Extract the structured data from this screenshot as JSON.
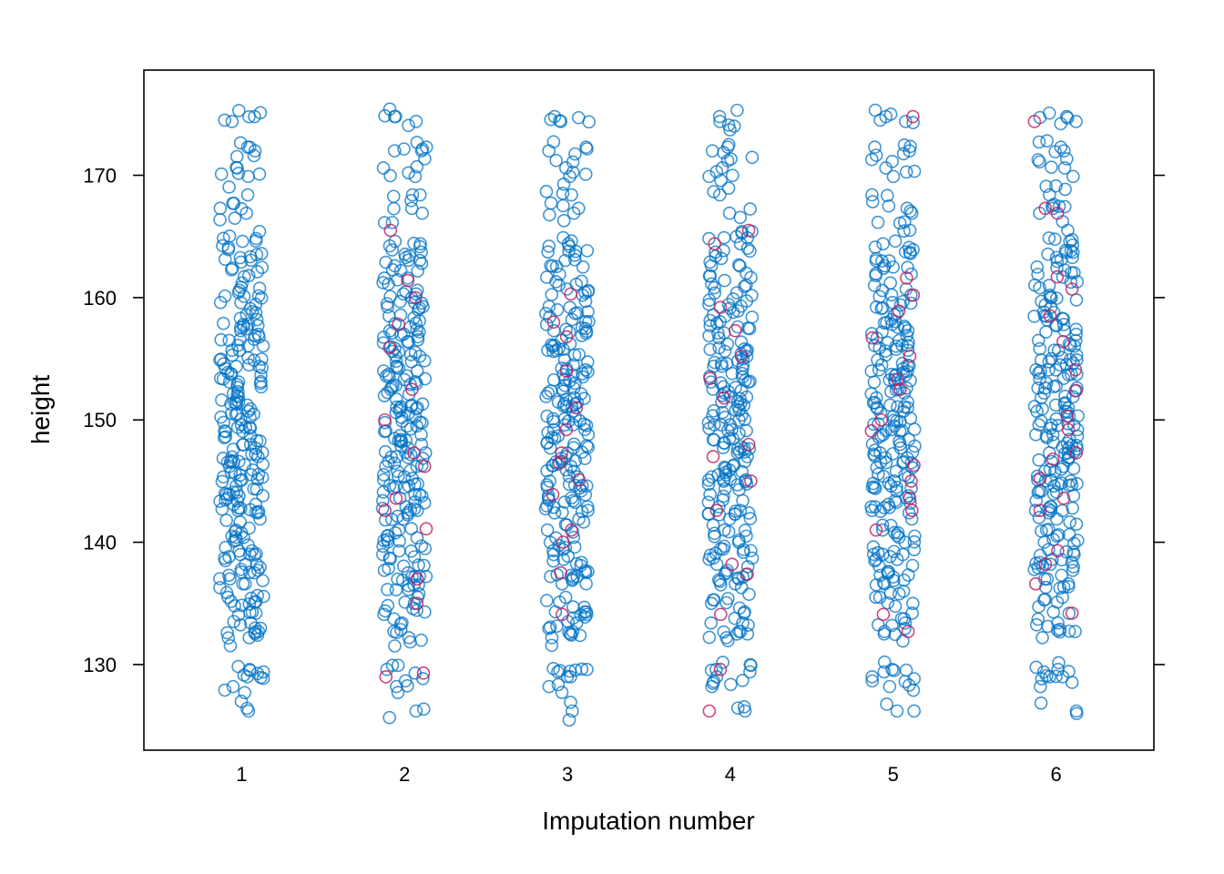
{
  "chart_data": {
    "type": "scatter",
    "title": "",
    "xlabel": "Imputation number",
    "ylabel": "height",
    "categories": [
      "1",
      "2",
      "3",
      "4",
      "5",
      "6"
    ],
    "x_ticks": [
      "1",
      "2",
      "3",
      "4",
      "5",
      "6"
    ],
    "y_ticks": [
      "130",
      "140",
      "150",
      "160",
      "170"
    ],
    "ylim": [
      123,
      178.6
    ],
    "x_range": [
      0.4,
      6.6
    ],
    "grid": false,
    "legend": "none",
    "marker": "open-circle",
    "jitter": true,
    "colors": {
      "observed": "#0072C6",
      "imputed": "#C2185B"
    },
    "series": [
      {
        "role": "observed",
        "note_points_per_category": 280,
        "values_by_category": [
          [
            126.2,
            128.2,
            129.0,
            129.4,
            129.6,
            132.2,
            132.6,
            132.7,
            133.4,
            134.2,
            134.3,
            134.8,
            135.1,
            135.5,
            136.6,
            137.0,
            137.3,
            137.5,
            137.7,
            138.2,
            138.7,
            139.0,
            139.3,
            140.4,
            140.5,
            141.0,
            141.9,
            142.4,
            142.6,
            142.8,
            143.1,
            143.6,
            143.9,
            144.1,
            144.6,
            145.1,
            145.3,
            145.5,
            145.9,
            146.2,
            146.6,
            147.0,
            147.2,
            147.6,
            148.0,
            148.3,
            148.7,
            149.1,
            149.4,
            149.8,
            150.2,
            150.5,
            150.9,
            151.3,
            151.6,
            152.0,
            152.3,
            152.7,
            153.1,
            153.4,
            153.8,
            154.2,
            154.5,
            154.9,
            155.3,
            155.7,
            156.1,
            156.5,
            156.9,
            157.3,
            157.8,
            158.2,
            158.6,
            159.1,
            159.6,
            160.1,
            160.6,
            161.2,
            161.8,
            162.4,
            162.9,
            163.6,
            164.1,
            164.6,
            165.4,
            166.9,
            167.3,
            168.4,
            169.9,
            170.6,
            172.0,
            172.3,
            174.4,
            174.8
          ],
          [
            126.2,
            128.2,
            129.3,
            129.6,
            132.2,
            132.7,
            133.4,
            134.1,
            134.3,
            135.1,
            135.5,
            136.5,
            136.9,
            137.2,
            137.5,
            137.7,
            138.1,
            138.7,
            139.0,
            139.3,
            140.1,
            140.5,
            141.0,
            141.9,
            142.4,
            142.6,
            142.9,
            143.4,
            143.9,
            144.1,
            144.6,
            145.1,
            145.4,
            145.8,
            146.2,
            146.6,
            147.0,
            147.3,
            147.7,
            148.0,
            148.4,
            148.8,
            149.1,
            149.5,
            149.9,
            150.2,
            150.6,
            151.0,
            151.3,
            151.7,
            152.1,
            152.5,
            152.9,
            153.3,
            153.6,
            154.0,
            154.4,
            154.8,
            155.2,
            155.6,
            156.0,
            156.4,
            156.8,
            157.2,
            157.6,
            158.1,
            158.5,
            159.0,
            159.5,
            160.0,
            160.6,
            161.1,
            161.6,
            162.2,
            162.8,
            163.4,
            163.9,
            164.4,
            164.6,
            166.9,
            167.3,
            168.4,
            169.9,
            170.6,
            172.0,
            172.3,
            174.4,
            174.8
          ],
          [
            126.2,
            128.2,
            129.0,
            129.4,
            129.6,
            132.2,
            132.5,
            132.7,
            133.4,
            134.1,
            134.3,
            135.1,
            135.5,
            136.6,
            137.0,
            137.3,
            137.6,
            138.1,
            138.6,
            139.0,
            139.4,
            140.4,
            141.0,
            141.9,
            142.4,
            142.6,
            142.9,
            143.4,
            143.8,
            144.2,
            144.6,
            145.0,
            145.4,
            145.8,
            146.2,
            146.6,
            147.0,
            147.3,
            147.7,
            148.1,
            148.5,
            148.8,
            149.2,
            149.6,
            149.9,
            150.3,
            150.7,
            151.1,
            151.4,
            151.8,
            152.2,
            152.6,
            153.0,
            153.3,
            153.7,
            154.1,
            154.5,
            154.9,
            155.3,
            155.7,
            156.1,
            156.5,
            156.9,
            157.4,
            157.8,
            158.2,
            158.7,
            159.2,
            159.7,
            160.2,
            160.7,
            161.3,
            161.9,
            162.5,
            163.1,
            163.8,
            164.4,
            164.9,
            166.9,
            167.3,
            168.4,
            169.9,
            170.6,
            172.0,
            172.3,
            174.4,
            174.8
          ],
          [
            126.2,
            128.2,
            129.0,
            129.4,
            129.6,
            132.2,
            132.5,
            132.7,
            133.4,
            134.3,
            135.0,
            135.3,
            136.6,
            137.0,
            137.4,
            137.7,
            138.2,
            138.7,
            139.1,
            139.4,
            140.0,
            140.5,
            141.0,
            141.9,
            142.3,
            142.6,
            142.9,
            143.4,
            143.9,
            144.3,
            144.7,
            145.1,
            145.5,
            145.9,
            146.3,
            146.6,
            147.0,
            147.4,
            147.8,
            148.1,
            148.5,
            148.9,
            149.3,
            149.6,
            150.0,
            150.4,
            150.8,
            151.1,
            151.5,
            151.9,
            152.3,
            152.7,
            153.1,
            153.5,
            153.8,
            154.2,
            154.6,
            155.0,
            155.4,
            155.8,
            156.2,
            156.7,
            157.1,
            157.5,
            157.9,
            158.4,
            158.8,
            159.3,
            159.8,
            160.4,
            160.9,
            161.4,
            162.0,
            162.6,
            163.2,
            163.8,
            164.4,
            164.9,
            165.4,
            166.9,
            168.4,
            169.9,
            170.6,
            172.0,
            172.3,
            174.4,
            174.8
          ],
          [
            126.2,
            128.2,
            129.0,
            129.4,
            129.6,
            132.5,
            132.7,
            133.4,
            134.2,
            135.0,
            135.5,
            136.6,
            136.9,
            137.3,
            137.6,
            138.1,
            138.6,
            139.0,
            139.4,
            140.0,
            140.4,
            141.0,
            141.9,
            142.4,
            142.6,
            142.9,
            143.4,
            143.8,
            144.2,
            144.6,
            145.0,
            145.4,
            145.8,
            146.1,
            146.5,
            146.9,
            147.3,
            147.7,
            148.0,
            148.4,
            148.8,
            149.2,
            149.5,
            149.9,
            150.3,
            150.7,
            151.0,
            151.4,
            151.8,
            152.2,
            152.6,
            153.0,
            153.3,
            153.7,
            154.1,
            154.5,
            154.9,
            155.3,
            155.7,
            156.1,
            156.5,
            156.9,
            157.3,
            157.8,
            158.2,
            158.7,
            159.1,
            159.6,
            160.2,
            160.7,
            161.2,
            161.8,
            162.4,
            163.0,
            163.6,
            164.1,
            164.4,
            165.5,
            166.9,
            167.3,
            168.4,
            169.9,
            170.6,
            172.0,
            172.3,
            174.4,
            174.8
          ],
          [
            126.2,
            128.2,
            129.0,
            129.4,
            129.6,
            132.2,
            132.7,
            133.4,
            134.3,
            135.1,
            135.5,
            136.6,
            137.0,
            137.3,
            137.7,
            138.2,
            138.6,
            139.0,
            139.4,
            140.0,
            140.5,
            141.0,
            141.9,
            142.4,
            142.6,
            142.9,
            143.4,
            143.8,
            144.2,
            144.6,
            145.0,
            145.4,
            145.8,
            146.2,
            146.6,
            146.9,
            147.3,
            147.7,
            148.1,
            148.4,
            148.8,
            149.2,
            149.6,
            149.9,
            150.3,
            150.7,
            151.1,
            151.4,
            151.8,
            152.2,
            152.6,
            153.0,
            153.4,
            153.7,
            154.1,
            154.5,
            154.9,
            155.3,
            155.7,
            156.1,
            156.5,
            157.0,
            157.4,
            157.8,
            158.3,
            158.8,
            159.2,
            159.7,
            160.2,
            160.8,
            161.3,
            161.9,
            162.5,
            163.1,
            163.7,
            164.3,
            164.6,
            165.5,
            166.9,
            167.3,
            168.4,
            169.9,
            170.6,
            172.0,
            172.3,
            174.4,
            174.8
          ]
        ]
      },
      {
        "role": "imputed",
        "values_by_category": [
          [],
          [
            129.3,
            129.0,
            135.0,
            137.0,
            141.1,
            142.6,
            143.6,
            146.2,
            147.3,
            150.0,
            152.5,
            155.9,
            157.8,
            160.0,
            161.4,
            165.5
          ],
          [
            134.1,
            137.5,
            140.0,
            141.0,
            143.9,
            145.1,
            146.5,
            147.3,
            149.2,
            151.0,
            154.0,
            156.8,
            158.0,
            160.3
          ],
          [
            126.2,
            129.6,
            134.1,
            137.4,
            138.2,
            142.6,
            145.0,
            147.0,
            148.0,
            151.8,
            153.4,
            155.2,
            157.3,
            159.2,
            164.4,
            165.5
          ],
          [
            132.7,
            134.1,
            141.0,
            142.6,
            143.6,
            145.0,
            146.3,
            149.1,
            150.0,
            152.5,
            153.3,
            155.2,
            156.7,
            158.9,
            160.2,
            161.6,
            174.8
          ],
          [
            134.2,
            136.6,
            138.2,
            139.3,
            142.6,
            143.6,
            145.2,
            146.8,
            147.3,
            149.2,
            150.3,
            152.4,
            154.1,
            156.4,
            158.5,
            160.7,
            161.7,
            166.9,
            167.3,
            174.4
          ]
        ]
      }
    ]
  }
}
